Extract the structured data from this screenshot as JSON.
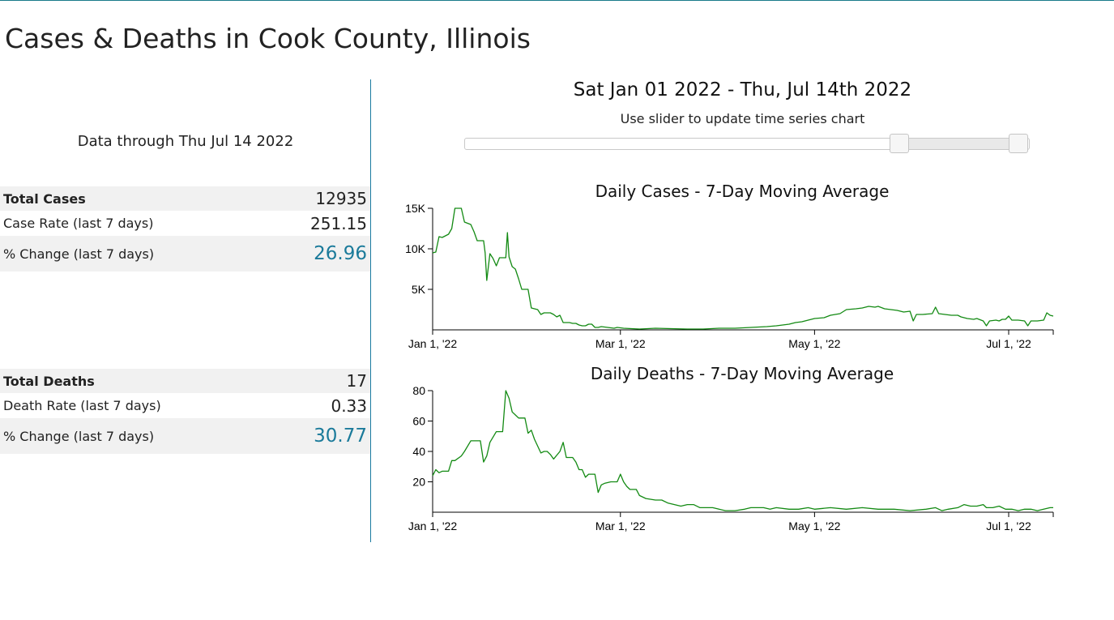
{
  "page": {
    "title": "Cases & Deaths in Cook County, Illinois",
    "data_through": "Data through Thu Jul 14 2022"
  },
  "cases_stats": {
    "total_label": "Total Cases",
    "total_value": "12935",
    "rate_label": "Case Rate (last 7 days)",
    "rate_value": "251.15",
    "change_label": "% Change (last 7 days)",
    "change_value": "26.96"
  },
  "deaths_stats": {
    "total_label": "Total Deaths",
    "total_value": "17",
    "rate_label": "Death Rate (last 7 days)",
    "rate_value": "0.33",
    "change_label": "% Change (last 7 days)",
    "change_value": "30.77"
  },
  "range": {
    "title": "Sat Jan 01 2022 - Thu, Jul 14th 2022",
    "hint": "Use slider to update time series chart",
    "slider_start_fraction": 0.77,
    "slider_end_fraction": 0.98
  },
  "colors": {
    "accent": "#1a7a9a",
    "line": "#138a13",
    "divider": "#1a7aa0"
  },
  "chart_data": [
    {
      "type": "line",
      "title": "Daily Cases - 7-Day Moving Average",
      "x_tick_labels": [
        "Jan 1, '22",
        "Mar 1, '22",
        "May 1, '22",
        "Jul 1, '22"
      ],
      "x_tick_days": [
        0,
        59,
        120,
        181
      ],
      "xlim_days": [
        0,
        195
      ],
      "y_ticks": [
        5000,
        10000,
        15000
      ],
      "y_tick_labels": [
        "5K",
        "10K",
        "15K"
      ],
      "ylim": [
        0,
        15000
      ],
      "series": [
        {
          "name": "Daily Cases",
          "points": [
            [
              0,
              9500
            ],
            [
              1,
              9600
            ],
            [
              2,
              11500
            ],
            [
              3,
              11400
            ],
            [
              5,
              11800
            ],
            [
              6,
              12500
            ],
            [
              7,
              15000
            ],
            [
              9,
              15000
            ],
            [
              10,
              13300
            ],
            [
              12,
              13000
            ],
            [
              13,
              12100
            ],
            [
              14,
              11000
            ],
            [
              16,
              11000
            ],
            [
              16.5,
              9500
            ],
            [
              17,
              6100
            ],
            [
              18,
              9400
            ],
            [
              19,
              8800
            ],
            [
              20,
              7900
            ],
            [
              21,
              8900
            ],
            [
              23,
              8900
            ],
            [
              23.5,
              12000
            ],
            [
              24,
              9000
            ],
            [
              25,
              7800
            ],
            [
              26,
              7500
            ],
            [
              27,
              6300
            ],
            [
              28,
              5000
            ],
            [
              30,
              5000
            ],
            [
              31,
              2700
            ],
            [
              33,
              2500
            ],
            [
              34,
              1900
            ],
            [
              35,
              2100
            ],
            [
              37,
              2100
            ],
            [
              38,
              1900
            ],
            [
              39,
              1600
            ],
            [
              40,
              1800
            ],
            [
              41,
              900
            ],
            [
              43,
              900
            ],
            [
              44,
              800
            ],
            [
              45,
              800
            ],
            [
              46,
              600
            ],
            [
              47,
              500
            ],
            [
              48,
              500
            ],
            [
              49,
              700
            ],
            [
              50,
              700
            ],
            [
              51,
              300
            ],
            [
              52,
              300
            ],
            [
              53,
              400
            ],
            [
              55,
              300
            ],
            [
              57,
              200
            ],
            [
              58,
              300
            ],
            [
              60,
              200
            ],
            [
              65,
              100
            ],
            [
              70,
              200
            ],
            [
              75,
              150
            ],
            [
              80,
              100
            ],
            [
              85,
              100
            ],
            [
              90,
              200
            ],
            [
              95,
              200
            ],
            [
              100,
              300
            ],
            [
              105,
              400
            ],
            [
              108,
              500
            ],
            [
              110,
              600
            ],
            [
              112,
              700
            ],
            [
              114,
              900
            ],
            [
              116,
              1000
            ],
            [
              118,
              1200
            ],
            [
              120,
              1400
            ],
            [
              123,
              1500
            ],
            [
              125,
              1800
            ],
            [
              128,
              2000
            ],
            [
              130,
              2500
            ],
            [
              133,
              2600
            ],
            [
              135,
              2700
            ],
            [
              137,
              2900
            ],
            [
              139,
              2800
            ],
            [
              140,
              2900
            ],
            [
              142,
              2600
            ],
            [
              144,
              2500
            ],
            [
              146,
              2400
            ],
            [
              148,
              2200
            ],
            [
              150,
              2300
            ],
            [
              151,
              1100
            ],
            [
              152,
              1900
            ],
            [
              154,
              1900
            ],
            [
              157,
              2000
            ],
            [
              158,
              2800
            ],
            [
              159,
              2000
            ],
            [
              161,
              1900
            ],
            [
              163,
              1800
            ],
            [
              165,
              1800
            ],
            [
              166,
              1600
            ],
            [
              168,
              1400
            ],
            [
              170,
              1300
            ],
            [
              171,
              1400
            ],
            [
              173,
              1100
            ],
            [
              174,
              500
            ],
            [
              175,
              1100
            ],
            [
              177,
              1200
            ],
            [
              178,
              1100
            ],
            [
              179,
              1300
            ],
            [
              180,
              1300
            ],
            [
              181,
              1700
            ],
            [
              182,
              1200
            ],
            [
              184,
              1200
            ],
            [
              186,
              1100
            ],
            [
              187,
              500
            ],
            [
              188,
              1100
            ],
            [
              190,
              1100
            ],
            [
              192,
              1200
            ],
            [
              193,
              2100
            ],
            [
              194,
              1800
            ],
            [
              195,
              1700
            ]
          ]
        }
      ]
    },
    {
      "type": "line",
      "title": "Daily Deaths - 7-Day Moving Average",
      "x_tick_labels": [
        "Jan 1, '22",
        "Mar 1, '22",
        "May 1, '22",
        "Jul 1, '22"
      ],
      "x_tick_days": [
        0,
        59,
        120,
        181
      ],
      "xlim_days": [
        0,
        195
      ],
      "y_ticks": [
        20,
        40,
        60,
        80
      ],
      "y_tick_labels": [
        "20",
        "40",
        "60",
        "80"
      ],
      "ylim": [
        0,
        80
      ],
      "series": [
        {
          "name": "Daily Deaths",
          "points": [
            [
              0,
              24
            ],
            [
              1,
              28
            ],
            [
              2,
              26
            ],
            [
              3,
              27
            ],
            [
              5,
              27
            ],
            [
              6,
              34
            ],
            [
              7,
              34
            ],
            [
              9,
              37
            ],
            [
              10,
              40
            ],
            [
              12,
              47
            ],
            [
              15,
              47
            ],
            [
              16,
              33
            ],
            [
              17,
              37
            ],
            [
              18,
              46
            ],
            [
              20,
              53
            ],
            [
              22,
              53
            ],
            [
              23,
              80
            ],
            [
              24,
              75
            ],
            [
              25,
              66
            ],
            [
              27,
              62
            ],
            [
              29,
              62
            ],
            [
              30,
              52
            ],
            [
              31,
              54
            ],
            [
              32,
              48
            ],
            [
              34,
              39
            ],
            [
              35,
              40
            ],
            [
              36,
              40
            ],
            [
              37,
              38
            ],
            [
              38,
              35
            ],
            [
              40,
              40
            ],
            [
              41,
              46
            ],
            [
              42,
              36
            ],
            [
              44,
              36
            ],
            [
              45,
              33
            ],
            [
              46,
              28
            ],
            [
              47,
              28
            ],
            [
              48,
              23
            ],
            [
              49,
              25
            ],
            [
              51,
              25
            ],
            [
              52,
              13
            ],
            [
              53,
              18
            ],
            [
              54,
              19
            ],
            [
              56,
              20
            ],
            [
              58,
              20
            ],
            [
              59,
              25
            ],
            [
              60,
              20
            ],
            [
              61,
              17
            ],
            [
              62,
              15
            ],
            [
              64,
              15
            ],
            [
              65,
              11
            ],
            [
              67,
              9
            ],
            [
              70,
              8
            ],
            [
              72,
              8
            ],
            [
              74,
              6
            ],
            [
              76,
              5
            ],
            [
              78,
              4
            ],
            [
              80,
              5
            ],
            [
              82,
              5
            ],
            [
              84,
              3
            ],
            [
              86,
              3
            ],
            [
              88,
              3
            ],
            [
              90,
              2
            ],
            [
              92,
              1
            ],
            [
              95,
              1
            ],
            [
              98,
              2
            ],
            [
              100,
              3
            ],
            [
              104,
              3
            ],
            [
              106,
              2
            ],
            [
              108,
              3
            ],
            [
              112,
              2
            ],
            [
              115,
              2
            ],
            [
              118,
              3
            ],
            [
              120,
              2
            ],
            [
              125,
              3
            ],
            [
              130,
              2
            ],
            [
              135,
              3
            ],
            [
              140,
              2
            ],
            [
              145,
              2
            ],
            [
              150,
              1
            ],
            [
              155,
              2
            ],
            [
              158,
              3
            ],
            [
              160,
              1
            ],
            [
              162,
              2
            ],
            [
              165,
              3
            ],
            [
              167,
              5
            ],
            [
              169,
              4
            ],
            [
              171,
              4
            ],
            [
              173,
              5
            ],
            [
              174,
              3
            ],
            [
              176,
              3
            ],
            [
              178,
              4
            ],
            [
              180,
              2
            ],
            [
              182,
              2
            ],
            [
              184,
              1
            ],
            [
              186,
              2
            ],
            [
              188,
              2
            ],
            [
              190,
              1
            ],
            [
              192,
              2
            ],
            [
              194,
              3
            ],
            [
              195,
              3
            ]
          ]
        }
      ]
    }
  ]
}
